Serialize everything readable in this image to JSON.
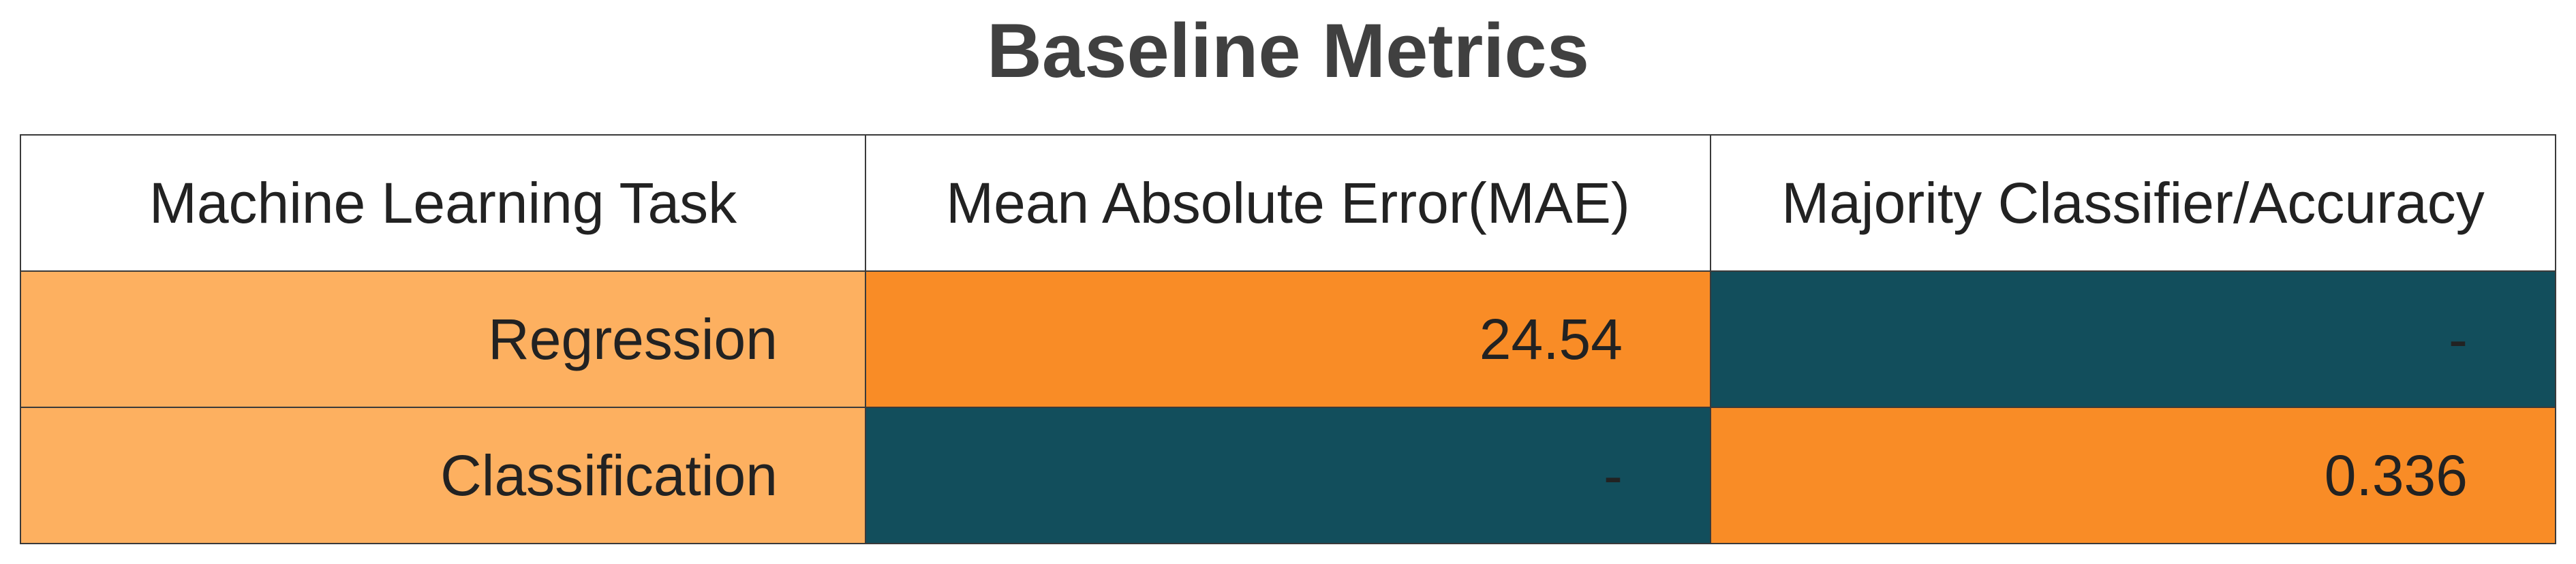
{
  "title": "Baseline Metrics",
  "colors": {
    "row_label": "#FDB060",
    "highlight": "#F98C26",
    "empty": "#124E5C",
    "header": "#FFFFFF"
  },
  "chart_data": {
    "type": "table",
    "title": "Baseline Metrics",
    "columns": [
      "Machine Learning Task",
      "Mean Absolute Error(MAE)",
      "Majority Classifier/Accuracy"
    ],
    "rows": [
      [
        "Regression",
        "24.54",
        "-"
      ],
      [
        "Classification",
        "-",
        "0.336"
      ]
    ]
  }
}
